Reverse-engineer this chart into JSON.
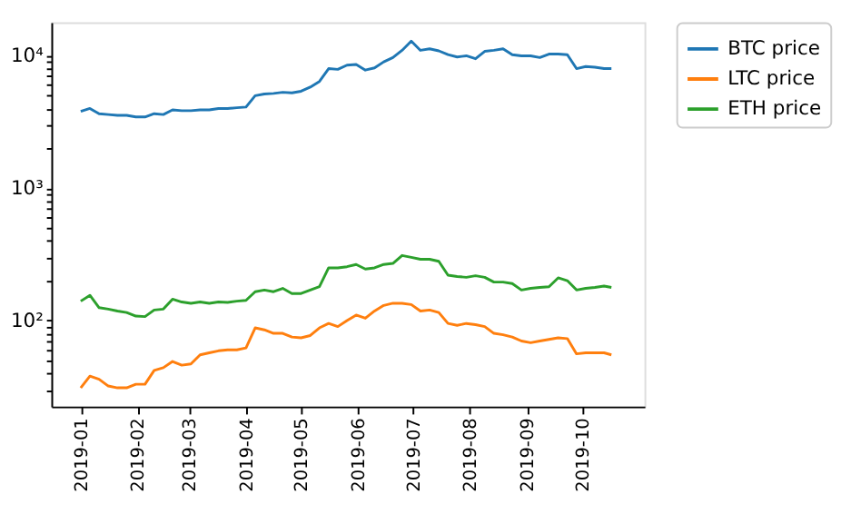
{
  "chart_data": {
    "type": "line",
    "log": "y",
    "grid": false,
    "legend": "right",
    "marker": "none",
    "line_style": "solid",
    "x": [
      "2019-01-01",
      "2019-01-06",
      "2019-01-11",
      "2019-01-16",
      "2019-01-21",
      "2019-01-26",
      "2019-01-31",
      "2019-02-05",
      "2019-02-10",
      "2019-02-15",
      "2019-02-20",
      "2019-02-25",
      "2019-03-02",
      "2019-03-07",
      "2019-03-12",
      "2019-03-17",
      "2019-03-22",
      "2019-03-27",
      "2019-04-01",
      "2019-04-06",
      "2019-04-11",
      "2019-04-16",
      "2019-04-21",
      "2019-04-26",
      "2019-05-01",
      "2019-05-06",
      "2019-05-11",
      "2019-05-16",
      "2019-05-21",
      "2019-05-26",
      "2019-05-31",
      "2019-06-05",
      "2019-06-10",
      "2019-06-15",
      "2019-06-20",
      "2019-06-25",
      "2019-06-30",
      "2019-07-05",
      "2019-07-10",
      "2019-07-15",
      "2019-07-20",
      "2019-07-25",
      "2019-07-30",
      "2019-08-04",
      "2019-08-09",
      "2019-08-14",
      "2019-08-19",
      "2019-08-24",
      "2019-08-29",
      "2019-09-03",
      "2019-09-08",
      "2019-09-13",
      "2019-09-18",
      "2019-09-23",
      "2019-09-28",
      "2019-10-03",
      "2019-10-08",
      "2019-10-13",
      "2019-10-17"
    ],
    "series": [
      {
        "name": "BTC price",
        "color": "#1f77b4",
        "values": [
          3800,
          4000,
          3650,
          3600,
          3550,
          3550,
          3450,
          3450,
          3650,
          3600,
          3900,
          3850,
          3850,
          3900,
          3900,
          4000,
          4000,
          4050,
          4100,
          5000,
          5150,
          5200,
          5300,
          5250,
          5400,
          5800,
          6400,
          8000,
          7900,
          8500,
          8600,
          7800,
          8100,
          9000,
          9700,
          11000,
          12900,
          11000,
          11300,
          10900,
          10200,
          9800,
          10000,
          9500,
          10800,
          11000,
          11300,
          10200,
          10000,
          10000,
          9700,
          10300,
          10300,
          10200,
          8000,
          8300,
          8200,
          8000,
          8000
        ]
      },
      {
        "name": "LTC price",
        "color": "#ff7f0e",
        "values": [
          31,
          38,
          36,
          32,
          31,
          31,
          33,
          33,
          42,
          44,
          49,
          46,
          47,
          55,
          57,
          59,
          60,
          60,
          62,
          88,
          85,
          80,
          80,
          75,
          74,
          77,
          88,
          95,
          90,
          100,
          110,
          104,
          118,
          130,
          135,
          135,
          132,
          118,
          120,
          115,
          95,
          92,
          95,
          93,
          90,
          80,
          78,
          75,
          70,
          68,
          70,
          72,
          74,
          73,
          56,
          57,
          57,
          57,
          55
        ]
      },
      {
        "name": "ETH price",
        "color": "#2ca02c",
        "values": [
          140,
          155,
          125,
          122,
          118,
          115,
          108,
          107,
          120,
          122,
          145,
          138,
          135,
          138,
          135,
          138,
          137,
          140,
          142,
          165,
          170,
          165,
          175,
          160,
          160,
          170,
          180,
          250,
          250,
          255,
          265,
          245,
          250,
          265,
          270,
          310,
          300,
          290,
          290,
          280,
          220,
          215,
          212,
          218,
          212,
          195,
          195,
          190,
          170,
          175,
          178,
          180,
          210,
          200,
          170,
          175,
          178,
          182,
          178
        ]
      }
    ],
    "xlim": [
      "2018-12-16",
      "2019-11-04"
    ],
    "xticks": [
      "2019-01",
      "2019-02",
      "2019-03",
      "2019-04",
      "2019-05",
      "2019-06",
      "2019-07",
      "2019-08",
      "2019-09",
      "2019-10"
    ],
    "ylim": [
      22.4,
      17900
    ],
    "yticks": [
      {
        "value": 30,
        "label": null
      },
      {
        "value": 40,
        "label": null
      },
      {
        "value": 50,
        "label": null
      },
      {
        "value": 60,
        "label": null
      },
      {
        "value": 70,
        "label": null
      },
      {
        "value": 80,
        "label": null
      },
      {
        "value": 90,
        "label": null
      },
      {
        "value": 100,
        "label": "10²"
      },
      {
        "value": 200,
        "label": null
      },
      {
        "value": 300,
        "label": null
      },
      {
        "value": 400,
        "label": null
      },
      {
        "value": 500,
        "label": null
      },
      {
        "value": 600,
        "label": null
      },
      {
        "value": 700,
        "label": null
      },
      {
        "value": 800,
        "label": null
      },
      {
        "value": 900,
        "label": null
      },
      {
        "value": 1000,
        "label": "10³"
      },
      {
        "value": 2000,
        "label": null
      },
      {
        "value": 3000,
        "label": null
      },
      {
        "value": 4000,
        "label": null
      },
      {
        "value": 5000,
        "label": null
      },
      {
        "value": 6000,
        "label": null
      },
      {
        "value": 7000,
        "label": null
      },
      {
        "value": 8000,
        "label": null
      },
      {
        "value": 9000,
        "label": null
      },
      {
        "value": 10000,
        "label": "10⁴"
      }
    ]
  }
}
